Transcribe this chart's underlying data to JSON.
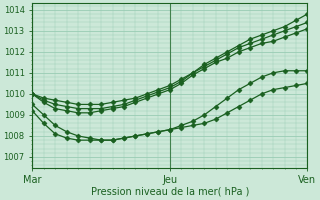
{
  "title": "",
  "xlabel": "Pression niveau de la mer( hPa )",
  "xtick_labels": [
    "Mar",
    "Jeu",
    "Ven"
  ],
  "xtick_positions": [
    0,
    48,
    96
  ],
  "ytick_labels": [
    "1007",
    "1008",
    "1009",
    "1010",
    "1011",
    "1012",
    "1013",
    "1014"
  ],
  "ylim": [
    1006.5,
    1014.3
  ],
  "xlim": [
    0,
    96
  ],
  "bg_color": "#cce8d8",
  "grid_color": "#99ccb4",
  "line_color": "#1a6020",
  "marker": "D",
  "markersize": 2.5,
  "linewidth": 0.9,
  "series": [
    {
      "x": [
        0,
        4,
        8,
        12,
        16,
        20,
        24,
        28,
        32,
        36,
        40,
        44,
        48,
        52,
        56,
        60,
        64,
        68,
        72,
        76,
        80,
        84,
        88,
        92,
        96
      ],
      "y": [
        1010.0,
        1009.8,
        1009.7,
        1009.6,
        1009.5,
        1009.5,
        1009.5,
        1009.6,
        1009.7,
        1009.8,
        1010.0,
        1010.2,
        1010.4,
        1010.7,
        1011.0,
        1011.4,
        1011.7,
        1012.0,
        1012.3,
        1012.6,
        1012.8,
        1013.0,
        1013.2,
        1013.5,
        1013.8
      ]
    },
    {
      "x": [
        0,
        4,
        8,
        12,
        16,
        20,
        24,
        28,
        32,
        36,
        40,
        44,
        48,
        52,
        56,
        60,
        64,
        68,
        72,
        76,
        80,
        84,
        88,
        92,
        96
      ],
      "y": [
        1010.0,
        1009.7,
        1009.5,
        1009.4,
        1009.3,
        1009.3,
        1009.3,
        1009.4,
        1009.5,
        1009.7,
        1009.9,
        1010.1,
        1010.3,
        1010.6,
        1011.0,
        1011.3,
        1011.6,
        1011.9,
        1012.2,
        1012.4,
        1012.6,
        1012.8,
        1013.0,
        1013.2,
        1013.4
      ]
    },
    {
      "x": [
        0,
        4,
        8,
        12,
        16,
        20,
        24,
        28,
        32,
        36,
        40,
        44,
        48,
        52,
        56,
        60,
        64,
        68,
        72,
        76,
        80,
        84,
        88,
        92,
        96
      ],
      "y": [
        1010.0,
        1009.6,
        1009.3,
        1009.2,
        1009.1,
        1009.1,
        1009.2,
        1009.3,
        1009.4,
        1009.6,
        1009.8,
        1010.0,
        1010.2,
        1010.5,
        1010.9,
        1011.2,
        1011.5,
        1011.7,
        1012.0,
        1012.2,
        1012.4,
        1012.5,
        1012.7,
        1012.9,
        1013.1
      ]
    },
    {
      "x": [
        0,
        4,
        8,
        12,
        16,
        20,
        24,
        28,
        32,
        36,
        40,
        44,
        48,
        52,
        56,
        60,
        64,
        68,
        72,
        76,
        80,
        84,
        88,
        92,
        96
      ],
      "y": [
        1009.5,
        1009.0,
        1008.5,
        1008.2,
        1008.0,
        1007.9,
        1007.8,
        1007.8,
        1007.9,
        1008.0,
        1008.1,
        1008.2,
        1008.3,
        1008.5,
        1008.7,
        1009.0,
        1009.4,
        1009.8,
        1010.2,
        1010.5,
        1010.8,
        1011.0,
        1011.1,
        1011.1,
        1011.1
      ]
    },
    {
      "x": [
        0,
        4,
        8,
        12,
        16,
        20,
        24,
        28,
        32,
        36,
        40,
        44,
        48,
        52,
        56,
        60,
        64,
        68,
        72,
        76,
        80,
        84,
        88,
        92,
        96
      ],
      "y": [
        1009.2,
        1008.6,
        1008.1,
        1007.9,
        1007.8,
        1007.8,
        1007.8,
        1007.8,
        1007.9,
        1008.0,
        1008.1,
        1008.2,
        1008.3,
        1008.4,
        1008.5,
        1008.6,
        1008.8,
        1009.1,
        1009.4,
        1009.7,
        1010.0,
        1010.2,
        1010.3,
        1010.4,
        1010.5
      ]
    }
  ]
}
